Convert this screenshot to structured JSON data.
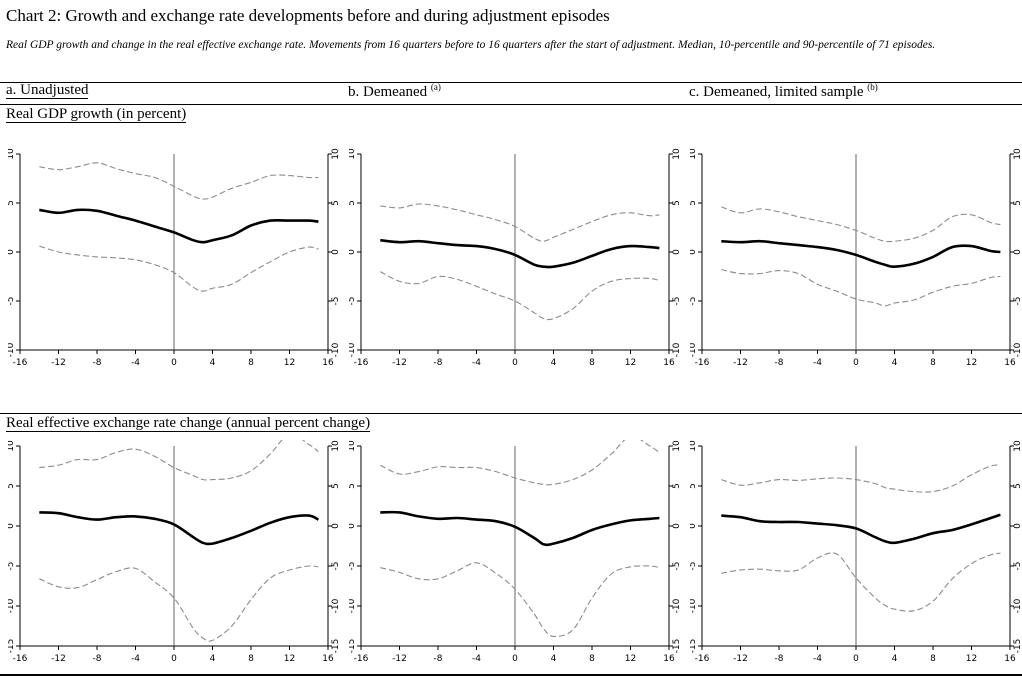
{
  "title": "Chart 2: Growth and exchange rate developments before and during adjustment episodes",
  "subtitle": "Real GDP growth and change in the real effective exchange rate. Movements from 16 quarters before to 16 quarters after the start of adjustment. Median, 10-percentile and 90-percentile of 71 episodes.",
  "columns": {
    "a": {
      "label": "a. Unadjusted",
      "note": ""
    },
    "b": {
      "label": "b. Demeaned ",
      "note": "(a)"
    },
    "c": {
      "label": "c. Demeaned, limited sample ",
      "note": "(b)"
    }
  },
  "rows": {
    "gdp": {
      "label": "Real GDP growth (in percent)"
    },
    "reer": {
      "label": "Real effective exchange rate change (annual percent change)"
    }
  },
  "colors": {
    "median": "#000000",
    "percentile": "#8c8c8c",
    "axis": "#000000",
    "zero_line": "#666666"
  },
  "chart_data": [
    {
      "id": "gdp-a",
      "type": "line",
      "xlim": [
        -16,
        16
      ],
      "ylim": [
        -10,
        10
      ],
      "xticks": [
        -16,
        -12,
        -8,
        -4,
        0,
        4,
        8,
        12,
        16
      ],
      "yticks": [
        -10,
        -5,
        0,
        5,
        10
      ],
      "x": [
        -14,
        -12,
        -10,
        -8,
        -6,
        -4,
        -2,
        0,
        2,
        3,
        4,
        6,
        8,
        10,
        12,
        14,
        15
      ],
      "series": [
        {
          "name": "90-percentile",
          "values": [
            8.7,
            8.4,
            8.7,
            9.1,
            8.5,
            8.0,
            7.6,
            6.7,
            5.7,
            5.4,
            5.6,
            6.5,
            7.1,
            7.8,
            7.8,
            7.6,
            7.6
          ]
        },
        {
          "name": "Median",
          "values": [
            4.3,
            4.0,
            4.3,
            4.2,
            3.7,
            3.2,
            2.6,
            2.0,
            1.2,
            1.0,
            1.2,
            1.7,
            2.7,
            3.2,
            3.2,
            3.2,
            3.1
          ]
        },
        {
          "name": "10-percentile",
          "values": [
            0.6,
            0.0,
            -0.3,
            -0.5,
            -0.6,
            -0.8,
            -1.3,
            -2.1,
            -3.6,
            -4.0,
            -3.7,
            -3.3,
            -2.1,
            -1.0,
            0.0,
            0.5,
            0.3
          ]
        }
      ]
    },
    {
      "id": "gdp-b",
      "type": "line",
      "xlim": [
        -16,
        16
      ],
      "ylim": [
        -10,
        10
      ],
      "xticks": [
        -16,
        -12,
        -8,
        -4,
        0,
        4,
        8,
        12,
        16
      ],
      "yticks": [
        -10,
        -5,
        0,
        5,
        10
      ],
      "x": [
        -14,
        -12,
        -10,
        -8,
        -6,
        -4,
        -2,
        0,
        2,
        3,
        4,
        6,
        8,
        10,
        12,
        14,
        15
      ],
      "series": [
        {
          "name": "90-percentile",
          "values": [
            4.7,
            4.5,
            4.9,
            4.7,
            4.3,
            3.8,
            3.3,
            2.6,
            1.4,
            1.1,
            1.5,
            2.3,
            3.1,
            3.8,
            4.0,
            3.7,
            3.8
          ]
        },
        {
          "name": "Median",
          "values": [
            1.2,
            1.0,
            1.1,
            0.9,
            0.7,
            0.6,
            0.3,
            -0.3,
            -1.3,
            -1.5,
            -1.5,
            -1.1,
            -0.4,
            0.3,
            0.6,
            0.5,
            0.4
          ]
        },
        {
          "name": "10-percentile",
          "values": [
            -2.0,
            -3.0,
            -3.2,
            -2.5,
            -2.8,
            -3.5,
            -4.3,
            -5.0,
            -6.2,
            -6.8,
            -6.8,
            -5.8,
            -4.0,
            -3.0,
            -2.7,
            -2.7,
            -2.9
          ]
        }
      ]
    },
    {
      "id": "gdp-c",
      "type": "line",
      "xlim": [
        -16,
        16
      ],
      "ylim": [
        -10,
        10
      ],
      "xticks": [
        -16,
        -12,
        -8,
        -4,
        0,
        4,
        8,
        12,
        16
      ],
      "yticks": [
        -10,
        -5,
        0,
        5,
        10
      ],
      "x": [
        -14,
        -12,
        -10,
        -8,
        -6,
        -4,
        -2,
        0,
        2,
        3,
        4,
        6,
        8,
        10,
        12,
        14,
        15
      ],
      "series": [
        {
          "name": "90-percentile",
          "values": [
            4.6,
            4.0,
            4.4,
            4.1,
            3.6,
            3.2,
            2.8,
            2.2,
            1.4,
            1.1,
            1.1,
            1.4,
            2.2,
            3.6,
            3.8,
            3.0,
            2.8
          ]
        },
        {
          "name": "Median",
          "values": [
            1.1,
            1.0,
            1.1,
            0.9,
            0.7,
            0.5,
            0.2,
            -0.3,
            -1.0,
            -1.3,
            -1.5,
            -1.2,
            -0.5,
            0.5,
            0.6,
            0.1,
            0.0
          ]
        },
        {
          "name": "10-percentile",
          "values": [
            -1.8,
            -2.2,
            -2.2,
            -1.9,
            -2.2,
            -3.3,
            -4.0,
            -4.8,
            -5.2,
            -5.5,
            -5.2,
            -4.9,
            -4.1,
            -3.5,
            -3.2,
            -2.6,
            -2.5
          ]
        }
      ]
    },
    {
      "id": "reer-a",
      "type": "line",
      "xlim": [
        -16,
        16
      ],
      "ylim": [
        -15,
        10
      ],
      "xticks": [
        -16,
        -12,
        -8,
        -4,
        0,
        4,
        8,
        12,
        16
      ],
      "yticks": [
        -15,
        -10,
        -5,
        0,
        5,
        10
      ],
      "x": [
        -14,
        -12,
        -10,
        -8,
        -6,
        -4,
        -2,
        0,
        2,
        3,
        4,
        6,
        8,
        10,
        12,
        14,
        15
      ],
      "series": [
        {
          "name": "90-percentile",
          "values": [
            7.3,
            7.6,
            8.3,
            8.3,
            9.2,
            9.6,
            8.7,
            7.3,
            6.3,
            5.8,
            5.8,
            6.0,
            6.9,
            9.0,
            11.5,
            10.2,
            9.3
          ]
        },
        {
          "name": "Median",
          "values": [
            1.7,
            1.6,
            1.1,
            0.8,
            1.1,
            1.2,
            0.9,
            0.2,
            -1.4,
            -2.1,
            -2.2,
            -1.5,
            -0.6,
            0.4,
            1.1,
            1.3,
            0.8
          ]
        },
        {
          "name": "10-percentile",
          "values": [
            -6.6,
            -7.6,
            -7.7,
            -6.7,
            -5.7,
            -5.3,
            -7.0,
            -9.0,
            -12.8,
            -14.0,
            -14.3,
            -12.5,
            -9.2,
            -6.5,
            -5.5,
            -5.0,
            -5.1
          ]
        }
      ]
    },
    {
      "id": "reer-b",
      "type": "line",
      "xlim": [
        -16,
        16
      ],
      "ylim": [
        -15,
        10
      ],
      "xticks": [
        -16,
        -12,
        -8,
        -4,
        0,
        4,
        8,
        12,
        16
      ],
      "yticks": [
        -15,
        -10,
        -5,
        0,
        5,
        10
      ],
      "x": [
        -14,
        -12,
        -10,
        -8,
        -6,
        -4,
        -2,
        0,
        2,
        3,
        4,
        6,
        8,
        10,
        12,
        14,
        15
      ],
      "series": [
        {
          "name": "90-percentile",
          "values": [
            7.6,
            6.5,
            6.8,
            7.4,
            7.3,
            7.3,
            6.8,
            6.0,
            5.4,
            5.2,
            5.2,
            5.8,
            7.0,
            9.0,
            11.2,
            10.0,
            9.2
          ]
        },
        {
          "name": "Median",
          "values": [
            1.7,
            1.7,
            1.2,
            0.9,
            1.0,
            0.8,
            0.6,
            -0.1,
            -1.5,
            -2.3,
            -2.2,
            -1.5,
            -0.5,
            0.2,
            0.7,
            0.9,
            1.0
          ]
        },
        {
          "name": "10-percentile",
          "values": [
            -5.2,
            -5.8,
            -6.6,
            -6.6,
            -5.6,
            -4.6,
            -5.9,
            -7.9,
            -11.0,
            -12.9,
            -13.8,
            -13.0,
            -9.0,
            -6.0,
            -5.1,
            -5.0,
            -5.2
          ]
        }
      ]
    },
    {
      "id": "reer-c",
      "type": "line",
      "xlim": [
        -16,
        16
      ],
      "ylim": [
        -15,
        10
      ],
      "xticks": [
        -16,
        -12,
        -8,
        -4,
        0,
        4,
        8,
        12,
        16
      ],
      "yticks": [
        -15,
        -10,
        -5,
        0,
        5,
        10
      ],
      "x": [
        -14,
        -12,
        -10,
        -8,
        -6,
        -4,
        -2,
        0,
        2,
        3,
        4,
        6,
        8,
        10,
        12,
        14,
        15
      ],
      "series": [
        {
          "name": "90-percentile",
          "values": [
            5.8,
            5.1,
            5.4,
            5.8,
            5.7,
            5.9,
            6.0,
            5.8,
            5.3,
            4.8,
            4.6,
            4.3,
            4.3,
            5.0,
            6.4,
            7.5,
            7.6
          ]
        },
        {
          "name": "Median",
          "values": [
            1.3,
            1.1,
            0.6,
            0.5,
            0.5,
            0.3,
            0.1,
            -0.3,
            -1.4,
            -1.9,
            -2.1,
            -1.6,
            -0.9,
            -0.5,
            0.2,
            1.0,
            1.4
          ]
        },
        {
          "name": "10-percentile",
          "values": [
            -5.9,
            -5.5,
            -5.4,
            -5.6,
            -5.5,
            -4.0,
            -3.5,
            -6.5,
            -9.0,
            -9.9,
            -10.4,
            -10.6,
            -9.4,
            -6.6,
            -4.7,
            -3.6,
            -3.4
          ]
        }
      ]
    }
  ]
}
